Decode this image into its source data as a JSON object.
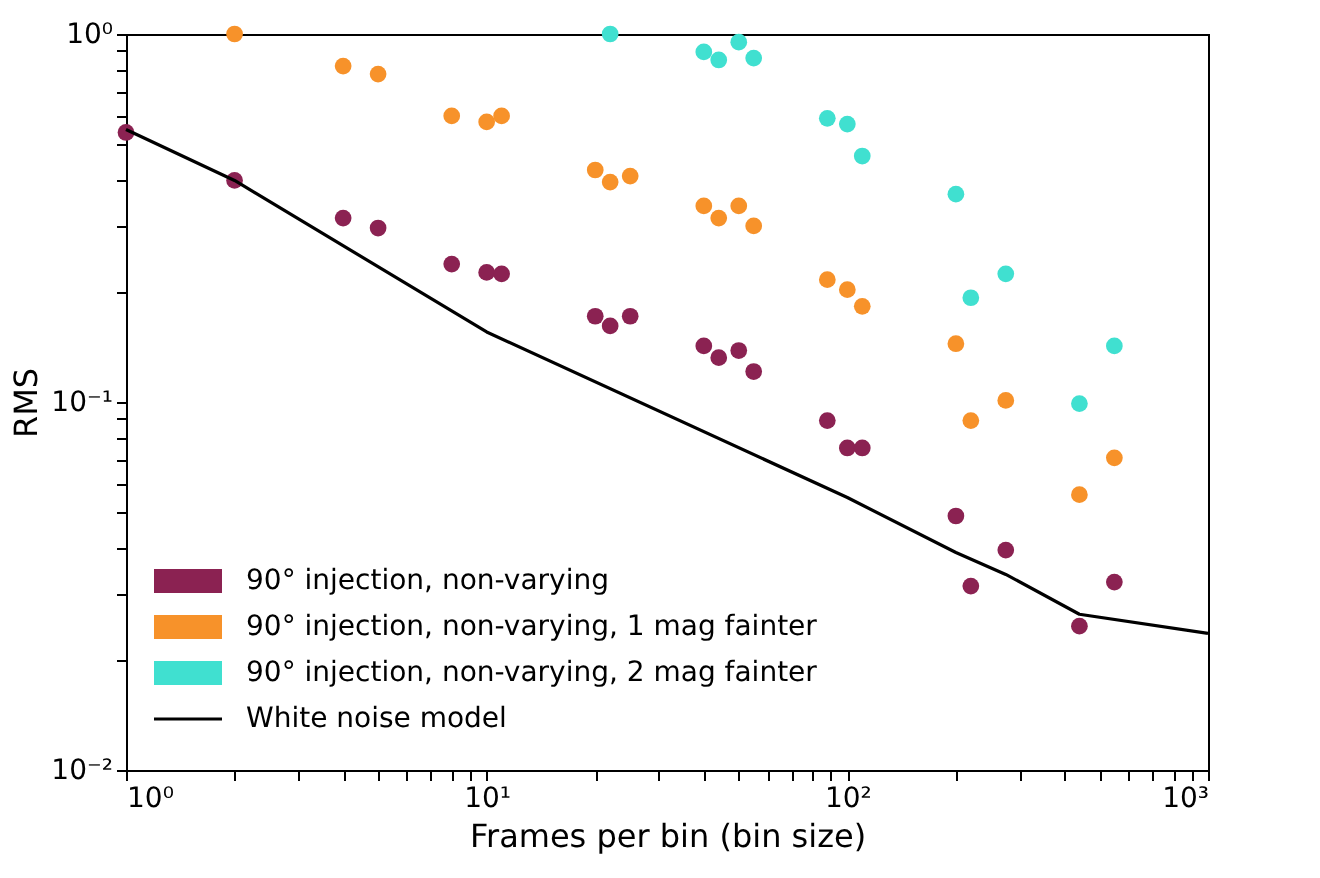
{
  "chart_data": {
    "type": "scatter",
    "xlabel": "Frames per bin (bin size)",
    "ylabel": "RMS",
    "log": "xy",
    "grid": false,
    "legend": "bottom left",
    "marker": "circle",
    "xlim": [
      1,
      1000
    ],
    "ylim": [
      0.01,
      1
    ],
    "xticks": [
      {
        "value": 1,
        "label": "10⁰"
      },
      {
        "value": 2,
        "label": null
      },
      {
        "value": 3,
        "label": null
      },
      {
        "value": 4,
        "label": null
      },
      {
        "value": 5,
        "label": null
      },
      {
        "value": 6,
        "label": null
      },
      {
        "value": 7,
        "label": null
      },
      {
        "value": 8,
        "label": null
      },
      {
        "value": 9,
        "label": null
      },
      {
        "value": 10,
        "label": "10¹"
      },
      {
        "value": 20,
        "label": null
      },
      {
        "value": 30,
        "label": null
      },
      {
        "value": 40,
        "label": null
      },
      {
        "value": 50,
        "label": null
      },
      {
        "value": 60,
        "label": null
      },
      {
        "value": 70,
        "label": null
      },
      {
        "value": 80,
        "label": null
      },
      {
        "value": 90,
        "label": null
      },
      {
        "value": 100,
        "label": "10²"
      },
      {
        "value": 200,
        "label": null
      },
      {
        "value": 300,
        "label": null
      },
      {
        "value": 400,
        "label": null
      },
      {
        "value": 500,
        "label": null
      },
      {
        "value": 600,
        "label": null
      },
      {
        "value": 700,
        "label": null
      },
      {
        "value": 800,
        "label": null
      },
      {
        "value": 900,
        "label": null
      },
      {
        "value": 1000,
        "label": "10³"
      }
    ],
    "yticks": [
      {
        "value": 0.01,
        "label": "10⁻²"
      },
      {
        "value": 0.02,
        "label": null
      },
      {
        "value": 0.03,
        "label": null
      },
      {
        "value": 0.04,
        "label": null
      },
      {
        "value": 0.05,
        "label": null
      },
      {
        "value": 0.06,
        "label": null
      },
      {
        "value": 0.07,
        "label": null
      },
      {
        "value": 0.08,
        "label": null
      },
      {
        "value": 0.09,
        "label": null
      },
      {
        "value": 0.1,
        "label": "10⁻¹"
      },
      {
        "value": 0.2,
        "label": null
      },
      {
        "value": 0.3,
        "label": null
      },
      {
        "value": 0.4,
        "label": null
      },
      {
        "value": 0.5,
        "label": null
      },
      {
        "value": 0.6,
        "label": null
      },
      {
        "value": 0.7,
        "label": null
      },
      {
        "value": 0.8,
        "label": null
      },
      {
        "value": 0.9,
        "label": null
      },
      {
        "value": 1,
        "label": "10⁰"
      }
    ],
    "series": [
      {
        "name": "90° injection, non-varying",
        "color": "#8b2252",
        "x": [
          1,
          2,
          4,
          5,
          8,
          10,
          11,
          20,
          22,
          25,
          40,
          44,
          50,
          55,
          88,
          100,
          110,
          200,
          220,
          275,
          440,
          550
        ],
        "values": [
          0.54,
          0.4,
          0.316,
          0.297,
          0.237,
          0.225,
          0.223,
          0.171,
          0.161,
          0.171,
          0.142,
          0.132,
          0.138,
          0.121,
          0.089,
          0.075,
          0.075,
          0.049,
          0.0316,
          0.0396,
          0.0246,
          0.0324
        ]
      },
      {
        "name": "90° injection, non-varying, 1 mag fainter",
        "color": "#f7922a",
        "x": [
          2,
          4,
          5,
          8,
          10,
          11,
          20,
          22,
          25,
          40,
          44,
          50,
          55,
          88,
          100,
          110,
          200,
          220,
          275,
          440,
          550
        ],
        "values": [
          1.0,
          0.818,
          0.778,
          0.599,
          0.577,
          0.599,
          0.427,
          0.396,
          0.411,
          0.341,
          0.316,
          0.341,
          0.301,
          0.215,
          0.202,
          0.182,
          0.144,
          0.089,
          0.101,
          0.056,
          0.0705
        ]
      },
      {
        "name": "90° injection, non-varying, 2 mag fainter",
        "color": "#40e0d0",
        "x": [
          22,
          40,
          44,
          50,
          55,
          88,
          100,
          110,
          200,
          220,
          275,
          440,
          550
        ],
        "values": [
          1.0,
          0.894,
          0.85,
          0.95,
          0.86,
          0.59,
          0.569,
          0.466,
          0.367,
          0.192,
          0.223,
          0.099,
          0.142
        ]
      },
      {
        "name": "White noise model",
        "type": "line",
        "color": "#000000",
        "line_style": "solid",
        "marker": "none",
        "x": [
          1,
          2,
          10,
          100,
          200,
          275,
          440,
          1000
        ],
        "values": [
          0.55,
          0.4,
          0.155,
          0.055,
          0.039,
          0.034,
          0.0265,
          0.0235
        ]
      }
    ]
  }
}
